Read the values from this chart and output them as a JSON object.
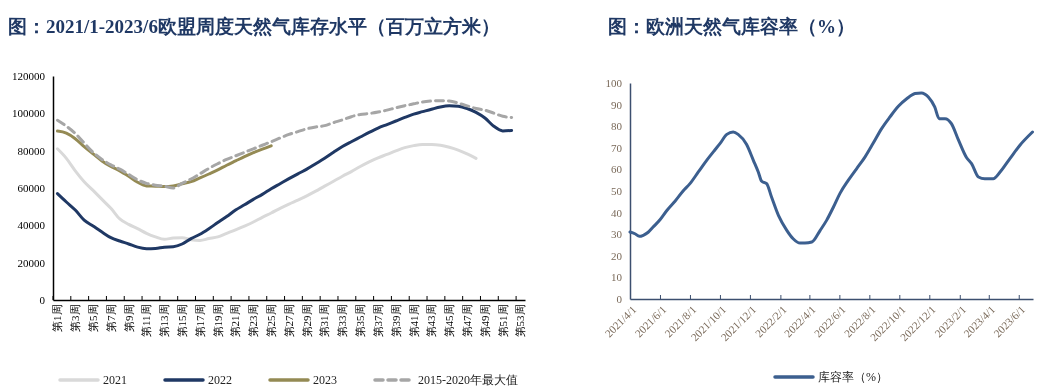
{
  "chart_data": [
    {
      "type": "line",
      "title": "图：2021/1-2023/6欧盟周度天然气库存水平（百万立方米）",
      "categories": [
        "第1周",
        null,
        "第3周",
        null,
        "第5周",
        null,
        "第7周",
        null,
        "第9周",
        null,
        "第11周",
        null,
        "第13周",
        null,
        "第15周",
        null,
        "第17周",
        null,
        "第19周",
        null,
        "第21周",
        null,
        "第23周",
        null,
        "第25周",
        null,
        "第27周",
        null,
        "第29周",
        null,
        "第31周",
        null,
        "第33周",
        null,
        "第35周",
        null,
        "第37周",
        null,
        "第39周",
        null,
        "第41周",
        null,
        "第43周",
        null,
        "第45周",
        null,
        "第47周",
        null,
        "第49周",
        null,
        "第51周",
        null,
        "第53周"
      ],
      "series": [
        {
          "name": "2021",
          "color": "#d9d9d9",
          "values": [
            81000,
            75900,
            69200,
            63400,
            58700,
            53900,
            49100,
            43400,
            40500,
            38200,
            35700,
            33800,
            32500,
            33200,
            33400,
            32300,
            31900,
            32900,
            33800,
            35700,
            37600,
            39600,
            41800,
            44300,
            46600,
            49100,
            51400,
            53500,
            55800,
            58300,
            61000,
            63600,
            66300,
            68800,
            71500,
            74000,
            76200,
            78000,
            79900,
            81600,
            82700,
            83300,
            83300,
            82900,
            81800,
            80300,
            78300,
            75900,
            null,
            null,
            null,
            null,
            null
          ]
        },
        {
          "name": "2022",
          "color": "#1f3864",
          "values": [
            57000,
            52500,
            48200,
            42800,
            39600,
            36400,
            33400,
            31600,
            30000,
            28300,
            27500,
            27600,
            28300,
            28500,
            30000,
            32900,
            35200,
            38200,
            41500,
            44700,
            48200,
            51000,
            53900,
            56600,
            59600,
            62300,
            65000,
            67600,
            70100,
            73000,
            75900,
            79100,
            82200,
            84800,
            87300,
            89800,
            92100,
            94000,
            95900,
            97800,
            99600,
            100900,
            102200,
            103400,
            104000,
            103800,
            102600,
            100500,
            97500,
            93100,
            90600,
            90800,
            null
          ]
        },
        {
          "name": "2023",
          "color": "#948a54",
          "values": [
            90500,
            89400,
            86400,
            82200,
            78300,
            74500,
            71500,
            69200,
            66300,
            63100,
            61100,
            61000,
            60800,
            61100,
            62300,
            63400,
            65400,
            67500,
            69700,
            72200,
            74500,
            76800,
            78900,
            80800,
            82600,
            null,
            null,
            null,
            null,
            null,
            null,
            null,
            null,
            null,
            null,
            null,
            null,
            null,
            null,
            null,
            null,
            null,
            null,
            null,
            null,
            null,
            null,
            null,
            null,
            null,
            null,
            null,
            null
          ]
        },
        {
          "name": "2015-2020年最大值",
          "color": "#a6a6a6",
          "line_style": "dashed",
          "values": [
            96300,
            93100,
            89200,
            84100,
            79100,
            75300,
            72400,
            70100,
            67300,
            64400,
            62500,
            61500,
            61000,
            60000,
            62500,
            64800,
            67600,
            70500,
            73000,
            75300,
            77200,
            79100,
            81000,
            82900,
            84800,
            86800,
            88700,
            90200,
            91700,
            92700,
            93400,
            95000,
            96500,
            98200,
            99400,
            99900,
            100700,
            101700,
            103000,
            104100,
            105100,
            106100,
            106600,
            106800,
            106600,
            105500,
            104000,
            102600,
            101700,
            100100,
            98400,
            97800,
            null
          ]
        }
      ],
      "ylim": [
        0,
        120000
      ],
      "yticks": [
        0,
        20000,
        40000,
        60000,
        80000,
        100000,
        120000
      ],
      "grid": false,
      "legend": "bottom",
      "marker": "none"
    },
    {
      "type": "line",
      "title": "图：欧洲天然气库容率（%）",
      "x": [
        "2021-04-01",
        "2021-04-11",
        "2021-04-20",
        "2021-04-28",
        "2021-05-08",
        "2021-05-18",
        "2021-06-01",
        "2021-06-15",
        "2021-07-02",
        "2021-07-18",
        "2021-08-01",
        "2021-08-18",
        "2021-09-04",
        "2021-09-21",
        "2021-10-01",
        "2021-10-15",
        "2021-10-28",
        "2021-11-07",
        "2021-11-24",
        "2021-12-08",
        "2021-12-18",
        "2021-12-25",
        "2022-01-04",
        "2022-01-14",
        "2022-01-28",
        "2022-02-14",
        "2022-02-27",
        "2022-03-13",
        "2022-03-23",
        "2022-04-06",
        "2022-04-23",
        "2022-05-06",
        "2022-05-20",
        "2022-06-02",
        "2022-06-19",
        "2022-07-06",
        "2022-07-23",
        "2022-08-09",
        "2022-08-26",
        "2022-09-12",
        "2022-09-29",
        "2022-10-16",
        "2022-11-02",
        "2022-11-15",
        "2022-11-29",
        "2022-12-12",
        "2022-12-21",
        "2023-01-02",
        "2023-01-15",
        "2023-01-29",
        "2023-02-15",
        "2023-02-25",
        "2023-03-11",
        "2023-03-24",
        "2023-04-10",
        "2023-04-24",
        "2023-05-14",
        "2023-06-03",
        "2023-06-29"
      ],
      "series": [
        {
          "name": "库容率（%）",
          "color": "#3c5f8f",
          "values": [
            31.0,
            30.2,
            29.0,
            29.5,
            30.9,
            33.3,
            36.7,
            41.0,
            45.4,
            50.0,
            53.4,
            58.8,
            64.2,
            69.1,
            71.9,
            76.2,
            77.3,
            76.2,
            71.6,
            64.2,
            58.8,
            54.5,
            53.4,
            47.2,
            38.7,
            31.8,
            27.9,
            25.9,
            25.9,
            26.4,
            31.8,
            36.4,
            42.6,
            48.8,
            54.9,
            60.3,
            65.7,
            72.2,
            78.9,
            84.3,
            89.2,
            92.7,
            95.1,
            95.4,
            93.5,
            88.9,
            83.5,
            83.5,
            81.2,
            73.8,
            65.4,
            62.7,
            56.5,
            55.7,
            55.7,
            58.8,
            65.0,
            71.1,
            77.3
          ]
        }
      ],
      "xlim": [
        "2021-04-01",
        "2023-06-30"
      ],
      "xticks": [
        {
          "value": "2021-04-01",
          "label": "2021/4/1"
        },
        {
          "value": "2021-06-01",
          "label": "2021/6/1"
        },
        {
          "value": "2021-08-01",
          "label": "2021/8/1"
        },
        {
          "value": "2021-10-01",
          "label": "2021/10/1"
        },
        {
          "value": "2021-12-01",
          "label": "2021/12/1"
        },
        {
          "value": "2022-02-01",
          "label": "2022/2/1"
        },
        {
          "value": "2022-04-01",
          "label": "2022/4/1"
        },
        {
          "value": "2022-06-01",
          "label": "2022/6/1"
        },
        {
          "value": "2022-08-01",
          "label": "2022/8/1"
        },
        {
          "value": "2022-10-01",
          "label": "2022/10/1"
        },
        {
          "value": "2022-12-01",
          "label": "2022/12/1"
        },
        {
          "value": "2023-02-01",
          "label": "2023/2/1"
        },
        {
          "value": "2023-04-01",
          "label": "2023/4/1"
        },
        {
          "value": "2023-06-01",
          "label": "2023/6/1"
        }
      ],
      "ylim": [
        0,
        100
      ],
      "yticks": [
        0,
        10,
        20,
        30,
        40,
        50,
        60,
        70,
        80,
        90,
        100
      ],
      "grid": false,
      "legend": "bottom",
      "marker": "none"
    }
  ]
}
